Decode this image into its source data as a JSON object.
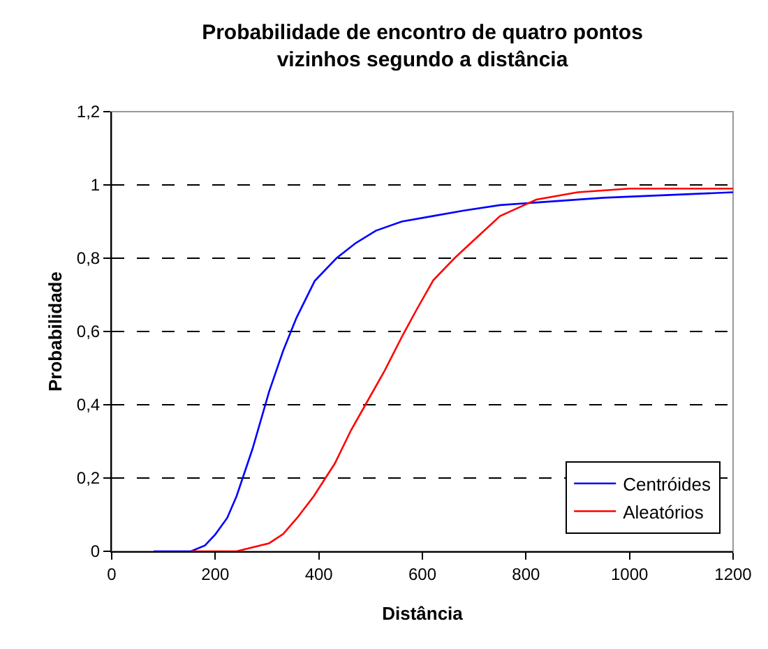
{
  "chart_data": {
    "type": "line",
    "title": "Probabilidade de encontro de quatro pontos\nvizinhos segundo a distância",
    "xlabel": "Distância",
    "ylabel": "Probabilidade",
    "xlim": [
      0,
      1200
    ],
    "xticks": [
      0,
      200,
      400,
      600,
      800,
      1000,
      1200
    ],
    "ylim": [
      0,
      1.2
    ],
    "yticks": [
      {
        "value": 0,
        "label": "0"
      },
      {
        "value": 0.2,
        "label": "0,2"
      },
      {
        "value": 0.4,
        "label": "0,4"
      },
      {
        "value": 0.6,
        "label": "0,6"
      },
      {
        "value": 0.8,
        "label": "0,8"
      },
      {
        "value": 1,
        "label": "1"
      },
      {
        "value": 1.2,
        "label": "1,2"
      }
    ],
    "grid": "y",
    "legend": "bottom right",
    "marker": "none",
    "line_style": "solid",
    "series": [
      {
        "name": "Centróides",
        "color": "#0000ff",
        "x": [
          81,
          153,
          180,
          200,
          223,
          241,
          272,
          304,
          331,
          357,
          392,
          434,
          470,
          510,
          560,
          620,
          680,
          750,
          850,
          950,
          1200
        ],
        "values": [
          0,
          0,
          0.016,
          0.046,
          0.091,
          0.15,
          0.28,
          0.436,
          0.547,
          0.638,
          0.738,
          0.8,
          0.84,
          0.875,
          0.9,
          0.915,
          0.93,
          0.945,
          0.955,
          0.965,
          0.98
        ]
      },
      {
        "name": "Aleatórios",
        "color": "#ff0000",
        "x": [
          153,
          241,
          304,
          331,
          358,
          390,
          431,
          462,
          490,
          526,
          562,
          589,
          621,
          662,
          700,
          750,
          820,
          900,
          1000,
          1200
        ],
        "values": [
          0,
          0,
          0.022,
          0.047,
          0.091,
          0.15,
          0.24,
          0.33,
          0.4,
          0.49,
          0.59,
          0.66,
          0.74,
          0.8,
          0.85,
          0.915,
          0.96,
          0.98,
          0.99,
          0.99
        ]
      }
    ]
  }
}
